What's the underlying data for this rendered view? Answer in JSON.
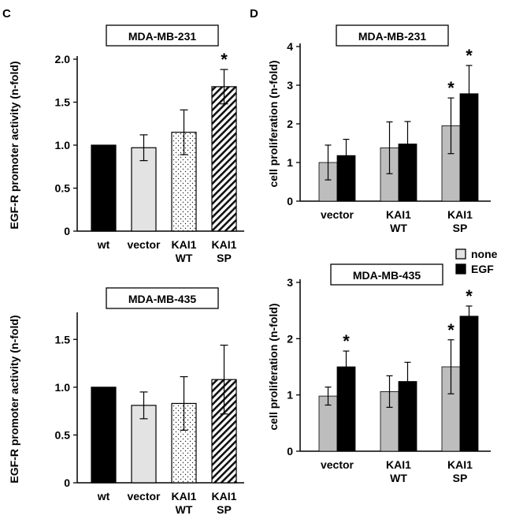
{
  "panel_labels": {
    "left": "C",
    "right": "D"
  },
  "legend": {
    "none": "none",
    "egf": "EGF"
  },
  "colors": {
    "black": "#000000",
    "gray": "#bdbdbd",
    "light": "#e3e3e3",
    "white": "#ffffff"
  },
  "chart_data": [
    {
      "id": "C1",
      "type": "bar",
      "title": "MDA-MB-231",
      "ylabel": "EGF-R promoter activity (n-fold)",
      "ylim": [
        0,
        2.0
      ],
      "yticks": [
        "0",
        "0.5",
        "1.0",
        "1.5",
        "2.0"
      ],
      "categories": [
        [
          "wt"
        ],
        [
          "vector"
        ],
        [
          "KAI1",
          "WT"
        ],
        [
          "KAI1",
          "SP"
        ]
      ],
      "values": [
        1.0,
        0.97,
        1.15,
        1.68
      ],
      "errors": [
        0,
        0.15,
        0.26,
        0.2
      ],
      "fills": [
        "black",
        "light",
        "dots",
        "hatch"
      ],
      "significant": [
        false,
        false,
        false,
        true
      ]
    },
    {
      "id": "C2",
      "type": "bar",
      "title": "MDA-MB-435",
      "ylabel": "EGF-R promoter activity (n-fold)",
      "ylim": [
        0,
        1.75
      ],
      "yticks": [
        "0",
        "0.5",
        "1.0",
        "1.5"
      ],
      "categories": [
        [
          "wt"
        ],
        [
          "vector"
        ],
        [
          "KAI1",
          "WT"
        ],
        [
          "KAI1",
          "SP"
        ]
      ],
      "values": [
        1.0,
        0.81,
        0.83,
        1.08
      ],
      "errors": [
        0,
        0.14,
        0.28,
        0.36
      ],
      "fills": [
        "black",
        "light",
        "dots",
        "hatch"
      ],
      "significant": [
        false,
        false,
        false,
        false
      ]
    },
    {
      "id": "D1",
      "type": "bar",
      "title": "MDA-MB-231",
      "ylabel": "cell proliferation (n-fold)",
      "ylim": [
        0,
        4
      ],
      "yticks": [
        "0",
        "1",
        "2",
        "3",
        "4"
      ],
      "categories": [
        [
          "vector"
        ],
        [
          "KAI1",
          "WT"
        ],
        [
          "KAI1",
          "SP"
        ]
      ],
      "series": [
        {
          "name": "none",
          "values": [
            1.0,
            1.38,
            1.95
          ],
          "errors": [
            0.45,
            0.67,
            0.72
          ],
          "significant": [
            false,
            false,
            true
          ]
        },
        {
          "name": "EGF",
          "values": [
            1.18,
            1.48,
            2.78
          ],
          "errors": [
            0.42,
            0.58,
            0.73
          ],
          "significant": [
            false,
            false,
            true
          ]
        }
      ]
    },
    {
      "id": "D2",
      "type": "bar",
      "title": "MDA-MB-435",
      "ylabel": "cell proliferation (n-fold)",
      "ylim": [
        0,
        3
      ],
      "yticks": [
        "0",
        "1",
        "2",
        "3"
      ],
      "categories": [
        [
          "vector"
        ],
        [
          "KAI1",
          "WT"
        ],
        [
          "KAI1",
          "SP"
        ]
      ],
      "series": [
        {
          "name": "none",
          "values": [
            0.98,
            1.06,
            1.5
          ],
          "errors": [
            0.16,
            0.28,
            0.48
          ],
          "significant": [
            false,
            false,
            true
          ]
        },
        {
          "name": "EGF",
          "values": [
            1.5,
            1.24,
            2.4
          ],
          "errors": [
            0.28,
            0.34,
            0.18
          ],
          "significant": [
            true,
            false,
            true
          ]
        }
      ]
    }
  ]
}
